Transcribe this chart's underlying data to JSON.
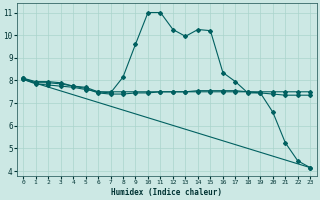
{
  "xlabel": "Humidex (Indice chaleur)",
  "ylabel": "",
  "background_color": "#cce8e4",
  "line_color": "#006060",
  "grid_color": "#aad4cc",
  "series": [
    {
      "x": [
        0,
        1,
        2,
        3,
        4,
        5,
        6,
        7,
        8,
        9,
        10,
        11,
        12,
        13,
        14,
        15,
        16,
        17,
        18,
        19,
        20,
        21,
        22,
        23
      ],
      "y": [
        8.1,
        7.95,
        7.95,
        7.9,
        7.75,
        7.7,
        7.5,
        7.45,
        8.15,
        9.6,
        11.0,
        11.0,
        10.25,
        9.95,
        10.25,
        10.2,
        8.35,
        7.95,
        7.45,
        7.45,
        6.6,
        5.25,
        4.45,
        4.15
      ]
    },
    {
      "x": [
        0,
        1,
        2,
        3,
        4,
        5,
        6,
        7,
        8,
        9,
        10,
        11,
        12,
        13,
        14,
        15,
        16,
        17,
        18,
        19,
        20,
        21,
        22,
        23
      ],
      "y": [
        8.1,
        7.9,
        7.9,
        7.85,
        7.75,
        7.65,
        7.45,
        7.4,
        7.4,
        7.45,
        7.45,
        7.5,
        7.5,
        7.5,
        7.55,
        7.55,
        7.55,
        7.55,
        7.5,
        7.45,
        7.4,
        7.35,
        7.35,
        7.35
      ]
    },
    {
      "x": [
        0,
        1,
        2,
        3,
        4,
        5,
        6,
        7,
        8,
        9,
        10,
        11,
        12,
        13,
        14,
        15,
        16,
        17,
        18,
        19,
        20,
        21,
        22,
        23
      ],
      "y": [
        8.05,
        7.85,
        7.8,
        7.75,
        7.7,
        7.6,
        7.5,
        7.5,
        7.5,
        7.5,
        7.5,
        7.5,
        7.5,
        7.5,
        7.5,
        7.5,
        7.5,
        7.5,
        7.5,
        7.5,
        7.5,
        7.5,
        7.5,
        7.5
      ]
    },
    {
      "x": [
        0,
        23
      ],
      "y": [
        8.05,
        4.15
      ]
    }
  ],
  "xlim": [
    -0.5,
    23.5
  ],
  "ylim": [
    3.8,
    11.4
  ],
  "xticks": [
    0,
    1,
    2,
    3,
    4,
    5,
    6,
    7,
    8,
    9,
    10,
    11,
    12,
    13,
    14,
    15,
    16,
    17,
    18,
    19,
    20,
    21,
    22,
    23
  ],
  "yticks": [
    4,
    5,
    6,
    7,
    8,
    9,
    10,
    11
  ]
}
